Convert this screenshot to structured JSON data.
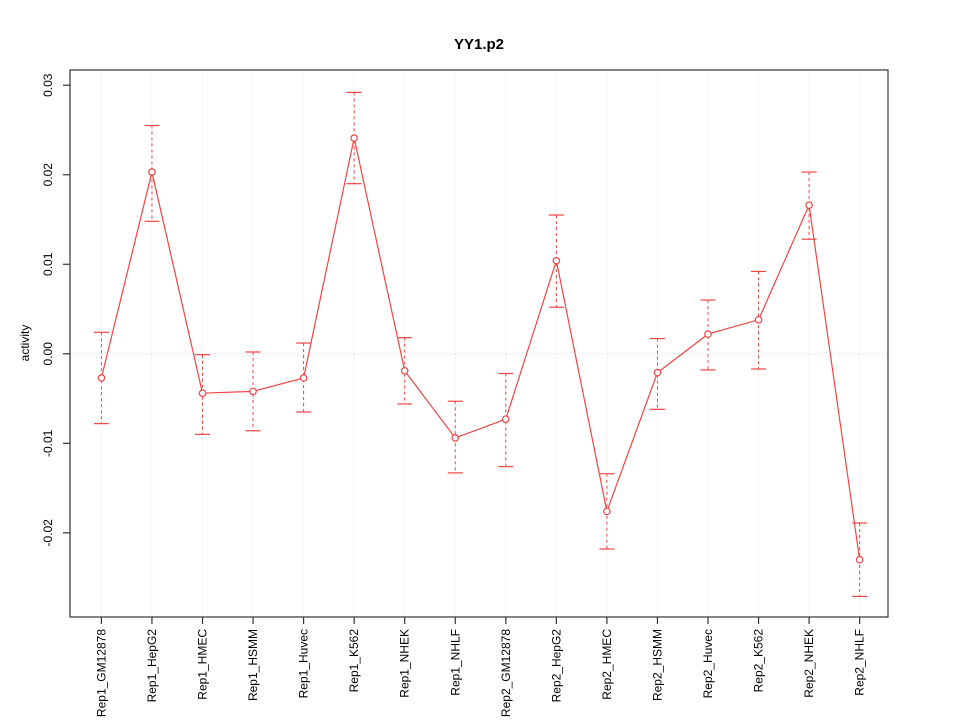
{
  "figure": {
    "background": "#ffffff"
  },
  "chart_data": {
    "type": "line",
    "title": "YY1.p2",
    "xlabel": "",
    "ylabel": "activity",
    "categories": [
      "Rep1_GM12878",
      "Rep1_HepG2",
      "Rep1_HMEC",
      "Rep1_HSMM",
      "Rep1_Huvec",
      "Rep1_K562",
      "Rep1_NHEK",
      "Rep1_NHLF",
      "Rep2_GM12878",
      "Rep2_HepG2",
      "Rep2_HMEC",
      "Rep2_HSMM",
      "Rep2_Huvec",
      "Rep2_K562",
      "Rep2_NHEK",
      "Rep2_NHLF"
    ],
    "series": [
      {
        "name": "activity",
        "values": [
          -0.0027,
          0.0203,
          -0.0044,
          -0.0042,
          -0.0027,
          0.0241,
          -0.0019,
          -0.0094,
          -0.0073,
          0.0104,
          -0.0176,
          -0.0021,
          0.0022,
          0.0038,
          0.0166,
          -0.023
        ],
        "err_high": [
          0.0024,
          0.0255,
          -0.0001,
          0.0002,
          0.0012,
          0.0292,
          0.0018,
          -0.0053,
          -0.0022,
          0.0155,
          -0.0134,
          0.0017,
          0.006,
          0.0092,
          0.0203,
          -0.0189
        ],
        "err_low": [
          -0.0078,
          0.0148,
          -0.009,
          -0.0086,
          -0.0065,
          0.019,
          -0.0056,
          -0.0133,
          -0.0126,
          0.0052,
          -0.0218,
          -0.0062,
          -0.0018,
          -0.0017,
          0.0128,
          -0.0271
        ]
      }
    ],
    "yticks": [
      {
        "label": "0.03",
        "value": 0.03
      },
      {
        "label": "0.02",
        "value": 0.02
      },
      {
        "label": "0.01",
        "value": 0.01
      },
      {
        "label": "0.00",
        "value": 0.0
      },
      {
        "label": "-0.01",
        "value": -0.01
      },
      {
        "label": "-0.02",
        "value": -0.02
      }
    ],
    "ylim": [
      -0.0294,
      0.0317
    ],
    "grid": "vertical dotted gridlines at each category; dotted horizontal line at zero",
    "legend": "none",
    "marker": "open-circle",
    "colors": {
      "line": "#ef4444",
      "grid": "#d9d9d9",
      "zero_line": "#cfcfcf",
      "axis": "#333333",
      "text": "#000000"
    }
  }
}
